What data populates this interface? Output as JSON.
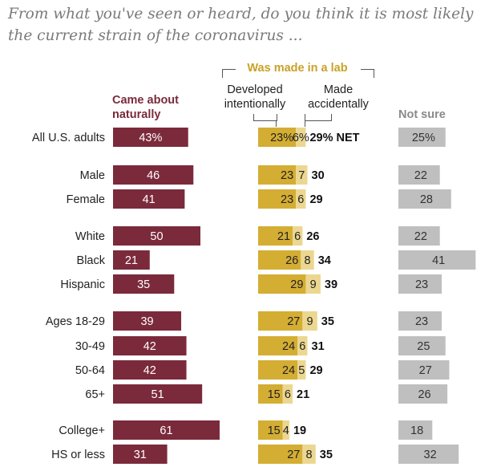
{
  "title": "From what you've seen or heard, do you think it is most likely the current strain of the coronavirus ...",
  "chart_data": {
    "type": "bar",
    "headers": {
      "came_about_naturally": "Came about naturally",
      "was_made_in_a_lab": "Was made in a lab",
      "developed_intentionally": "Developed intentionally",
      "made_accidentally": "Made accidentally",
      "not_sure": "Not sure"
    },
    "categories": [
      "All U.S. adults",
      "Male",
      "Female",
      "White",
      "Black",
      "Hispanic",
      "Ages 18-29",
      "30-49",
      "50-64",
      "65+",
      "College+",
      "HS or less"
    ],
    "series": [
      {
        "name": "Came about naturally",
        "values": [
          43,
          46,
          41,
          50,
          21,
          35,
          39,
          42,
          42,
          51,
          61,
          31
        ],
        "labels": [
          "43%",
          "46",
          "41",
          "50",
          "21",
          "35",
          "39",
          "42",
          "42",
          "51",
          "61",
          "31"
        ],
        "color": "#7b2a3b"
      },
      {
        "name": "Developed intentionally",
        "values": [
          23,
          23,
          23,
          21,
          26,
          29,
          27,
          24,
          24,
          15,
          15,
          27
        ],
        "labels": [
          "23%",
          "23",
          "23",
          "21",
          "26",
          "29",
          "27",
          "24",
          "24",
          "15",
          "15",
          "27"
        ],
        "color": "#d4ad33"
      },
      {
        "name": "Made accidentally",
        "values": [
          6,
          7,
          6,
          6,
          8,
          9,
          9,
          6,
          5,
          6,
          4,
          8
        ],
        "labels": [
          "6%",
          "7",
          "6",
          "6",
          "8",
          "9",
          "9",
          "6",
          "5",
          "6",
          "4",
          "8"
        ],
        "color": "#ecd790"
      },
      {
        "name": "NET",
        "values": [
          29,
          30,
          29,
          26,
          34,
          39,
          35,
          31,
          29,
          21,
          19,
          35
        ],
        "labels": [
          "29% NET",
          "30",
          "29",
          "26",
          "34",
          "39",
          "35",
          "31",
          "29",
          "21",
          "19",
          "35"
        ]
      },
      {
        "name": "Not sure",
        "values": [
          25,
          22,
          28,
          22,
          41,
          23,
          23,
          25,
          27,
          26,
          18,
          32
        ],
        "labels": [
          "25%",
          "22",
          "28",
          "22",
          "41",
          "23",
          "23",
          "25",
          "27",
          "26",
          "18",
          "32"
        ],
        "color": "#bfbfbf"
      }
    ],
    "grid": false,
    "legend": "column headers"
  }
}
